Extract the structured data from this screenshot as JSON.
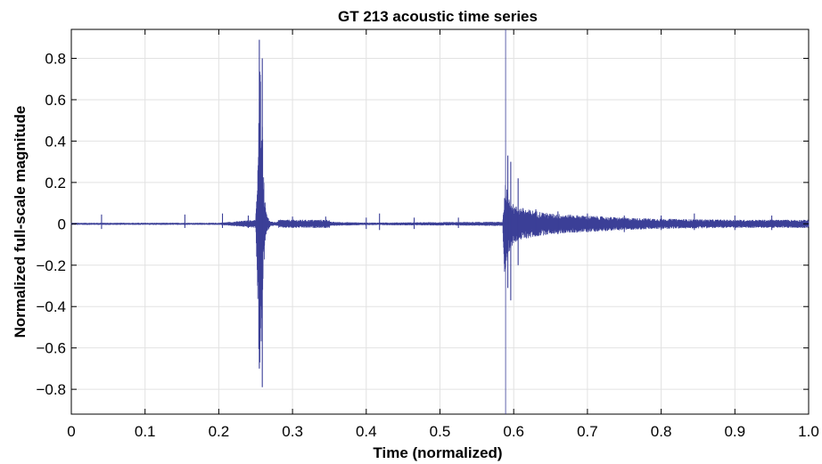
{
  "chart_data": {
    "type": "line",
    "title": "GT 213 acoustic time series",
    "xlabel": "Time (normalized)",
    "ylabel": "Normalized full-scale magnitude",
    "xlim": [
      0,
      1.0
    ],
    "ylim": [
      -0.92,
      0.94
    ],
    "x_ticks": [
      0,
      0.1,
      0.2,
      0.3,
      0.4,
      0.5,
      0.6,
      0.7,
      0.8,
      0.9,
      1.0
    ],
    "x_tick_labels": [
      "0",
      "0.1",
      "0.2",
      "0.3",
      "0.4",
      "0.5",
      "0.6",
      "0.7",
      "0.8",
      "0.9",
      "1.0"
    ],
    "y_ticks": [
      0.8,
      0.6,
      0.4,
      0.2,
      0,
      -0.2,
      -0.4,
      -0.6,
      -0.8
    ],
    "y_tick_labels": [
      "0.8",
      "0.6",
      "0.4",
      "0.2",
      "0",
      "−0.2",
      "−0.4",
      "−0.6",
      "−0.8"
    ],
    "grid": true,
    "series_color": "#3b3f97",
    "envelope": {
      "x": [
        0,
        0.04,
        0.1,
        0.2,
        0.25,
        0.252,
        0.254,
        0.256,
        0.258,
        0.26,
        0.263,
        0.267,
        0.27,
        0.28,
        0.281,
        0.35,
        0.351,
        0.4,
        0.5,
        0.585,
        0.587,
        0.589,
        0.592,
        0.6,
        0.62,
        0.65,
        0.7,
        0.75,
        0.8,
        0.85,
        0.9,
        1.0
      ],
      "upper": [
        0.005,
        0.005,
        0.005,
        0.005,
        0.02,
        0.18,
        0.5,
        0.8,
        0.75,
        0.35,
        0.1,
        0.03,
        0.01,
        0.01,
        0.02,
        0.02,
        0.01,
        0.006,
        0.008,
        0.01,
        0.12,
        0.2,
        0.15,
        0.09,
        0.07,
        0.05,
        0.04,
        0.03,
        0.025,
        0.022,
        0.02,
        0.02
      ],
      "lower": [
        -0.005,
        -0.005,
        -0.005,
        -0.005,
        -0.02,
        -0.25,
        -0.62,
        -0.78,
        -0.6,
        -0.3,
        -0.08,
        -0.03,
        -0.01,
        -0.01,
        -0.02,
        -0.02,
        -0.01,
        -0.006,
        -0.008,
        -0.01,
        -0.25,
        -0.3,
        -0.18,
        -0.09,
        -0.07,
        -0.05,
        -0.04,
        -0.03,
        -0.025,
        -0.022,
        -0.02,
        -0.02
      ]
    },
    "spikes": [
      {
        "x": 0.041,
        "min": -0.025,
        "max": 0.045
      },
      {
        "x": 0.154,
        "min": -0.02,
        "max": 0.045
      },
      {
        "x": 0.205,
        "min": -0.02,
        "max": 0.05
      },
      {
        "x": 0.24,
        "min": -0.02,
        "max": 0.04
      },
      {
        "x": 0.255,
        "min": -0.7,
        "max": 0.89
      },
      {
        "x": 0.259,
        "min": -0.79,
        "max": 0.8
      },
      {
        "x": 0.3,
        "min": -0.02,
        "max": 0.035
      },
      {
        "x": 0.345,
        "min": -0.02,
        "max": 0.035
      },
      {
        "x": 0.4,
        "min": -0.025,
        "max": 0.03
      },
      {
        "x": 0.418,
        "min": -0.03,
        "max": 0.05
      },
      {
        "x": 0.465,
        "min": -0.025,
        "max": 0.03
      },
      {
        "x": 0.525,
        "min": -0.02,
        "max": 0.03
      },
      {
        "x": 0.589,
        "min": -0.92,
        "max": 0.94
      },
      {
        "x": 0.592,
        "min": -0.31,
        "max": 0.33
      },
      {
        "x": 0.596,
        "min": -0.37,
        "max": 0.3
      },
      {
        "x": 0.606,
        "min": -0.2,
        "max": 0.22
      },
      {
        "x": 0.63,
        "min": -0.06,
        "max": 0.07
      },
      {
        "x": 0.66,
        "min": -0.05,
        "max": 0.06
      },
      {
        "x": 0.7,
        "min": -0.04,
        "max": 0.05
      },
      {
        "x": 0.75,
        "min": -0.04,
        "max": 0.04
      },
      {
        "x": 0.8,
        "min": -0.03,
        "max": 0.04
      },
      {
        "x": 0.845,
        "min": -0.03,
        "max": 0.05
      },
      {
        "x": 0.9,
        "min": -0.03,
        "max": 0.04
      },
      {
        "x": 0.95,
        "min": -0.03,
        "max": 0.04
      }
    ]
  }
}
